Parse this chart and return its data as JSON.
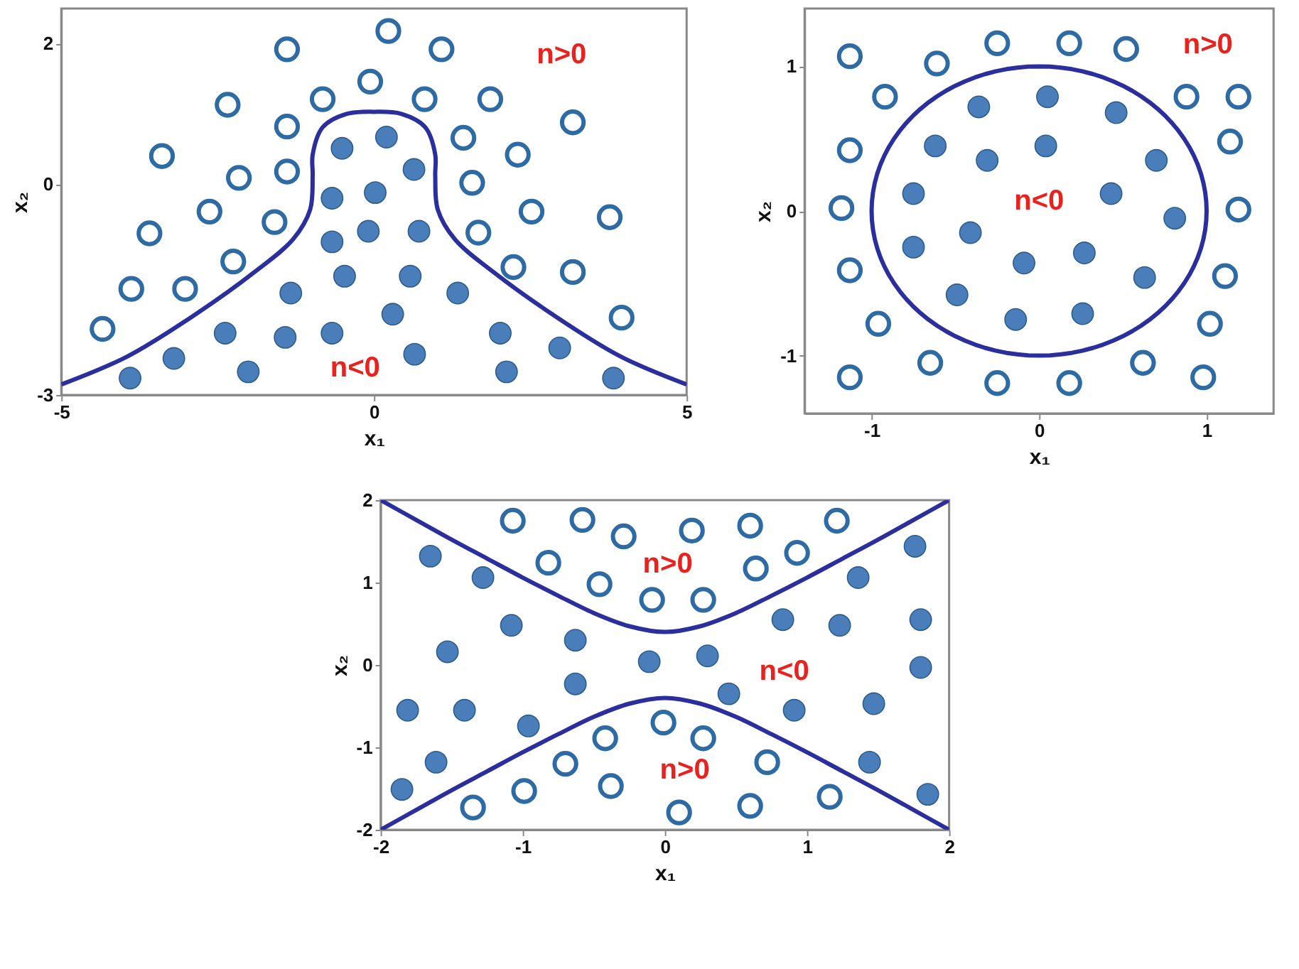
{
  "chart_data": [
    {
      "type": "scatter",
      "xlabel": "x₁",
      "ylabel": "x₂",
      "xlim": [
        -5,
        5
      ],
      "ylim": [
        -3,
        2.5
      ],
      "xticks": [
        -5,
        0,
        5
      ],
      "yticks": [
        -3,
        0,
        2
      ],
      "grid": false,
      "annotations": [
        "n>0",
        "n<0"
      ],
      "series": [
        {
          "marker": "circle",
          "color": "#2e6aa3",
          "x": [
            0.23,
            -1.39,
            1.08,
            -0.06,
            -2.34,
            -0.82,
            0.81,
            1.86,
            3.18,
            -1.39,
            1.43,
            -3.39,
            2.3,
            -2.16,
            -1.39,
            1.57,
            -2.63,
            -1.59,
            2.52,
            3.77,
            -3.59,
            1.67,
            -2.25,
            2.23,
            -3.88,
            -3.02,
            3.18,
            -4.34,
            3.96
          ],
          "values": [
            2.18,
            1.92,
            1.92,
            1.46,
            1.13,
            1.21,
            1.21,
            1.21,
            0.88,
            0.82,
            0.66,
            0.4,
            0.42,
            0.09,
            0.18,
            0.02,
            -0.39,
            -0.54,
            -0.39,
            -0.47,
            -0.7,
            -0.69,
            -1.1,
            -1.18,
            -1.49,
            -1.49,
            -1.25,
            -2.06,
            -1.9
          ]
        },
        {
          "marker": "circle",
          "color": "#4a7ebb",
          "x": [
            0.2,
            -0.51,
            0.64,
            -0.67,
            0.02,
            -0.09,
            -0.67,
            0.72,
            -0.47,
            0.58,
            -1.33,
            1.34,
            0.3,
            -2.38,
            -1.42,
            -0.67,
            2.02,
            -3.2,
            0.65,
            2.97,
            -3.9,
            -2.01,
            2.12,
            3.83
          ],
          "values": [
            0.67,
            0.51,
            0.21,
            -0.2,
            -0.12,
            -0.67,
            -0.82,
            -0.67,
            -1.31,
            -1.31,
            -1.55,
            -1.55,
            -1.85,
            -2.12,
            -2.18,
            -2.12,
            -2.12,
            -2.48,
            -2.42,
            -2.33,
            -2.76,
            -2.67,
            -2.67,
            -2.76
          ]
        },
        {
          "type": "line",
          "marker": "none",
          "color": "#2b2f9e",
          "x": [
            -5,
            -3.94,
            -2.85,
            -1.91,
            -1.29,
            -1.02,
            -0.98,
            -0.98,
            -0.82,
            -0.44,
            0,
            0.44,
            0.82,
            0.98,
            0.98,
            1.02,
            1.29,
            1.91,
            2.85,
            3.94,
            5
          ],
          "values": [
            -2.85,
            -2.45,
            -1.85,
            -1.25,
            -0.78,
            -0.36,
            0.12,
            0.42,
            0.81,
            1.0,
            1.03,
            1.0,
            0.81,
            0.42,
            0.12,
            -0.36,
            -0.78,
            -1.25,
            -1.85,
            -2.45,
            -2.85
          ]
        }
      ]
    },
    {
      "type": "scatter",
      "xlabel": "x₁",
      "ylabel": "x₂",
      "xlim": [
        -1.4,
        1.4
      ],
      "ylim": [
        -1.4,
        1.4
      ],
      "xticks": [
        -1,
        0,
        1
      ],
      "yticks": [
        -1,
        0,
        1
      ],
      "grid": false,
      "annotations": [
        "n>0",
        "n<0"
      ],
      "series": [
        {
          "marker": "circle",
          "color": "#2e6aa3",
          "x": [
            -1.13,
            -0.61,
            -0.25,
            0.18,
            0.52,
            -0.92,
            0.88,
            1.19,
            -1.13,
            1.14,
            -1.18,
            1.19,
            -1.13,
            1.11,
            -0.96,
            1.02,
            -1.13,
            -0.65,
            -0.25,
            0.18,
            0.62,
            0.98
          ],
          "values": [
            1.07,
            1.02,
            1.16,
            1.16,
            1.12,
            0.79,
            0.79,
            0.79,
            0.42,
            0.48,
            0.02,
            0.01,
            -0.41,
            -0.45,
            -0.78,
            -0.78,
            -1.15,
            -1.05,
            -1.19,
            -1.19,
            -1.05,
            -1.15
          ]
        },
        {
          "marker": "circle",
          "color": "#4a7ebb",
          "x": [
            0.05,
            -0.36,
            0.46,
            -0.62,
            0.04,
            -0.31,
            0.7,
            -0.75,
            0.43,
            0.81,
            -0.41,
            -0.75,
            0.27,
            -0.09,
            0.63,
            -0.49,
            -0.14,
            0.26
          ],
          "values": [
            0.79,
            0.72,
            0.68,
            0.45,
            0.45,
            0.35,
            0.35,
            0.12,
            0.12,
            -0.05,
            -0.15,
            -0.25,
            -0.29,
            -0.36,
            -0.46,
            -0.58,
            -0.75,
            -0.71
          ]
        }
      ]
    },
    {
      "type": "scatter",
      "xlabel": "x₁",
      "ylabel": "x₂",
      "xlim": [
        -2,
        2
      ],
      "ylim": [
        -2,
        2
      ],
      "xticks": [
        -2,
        -1,
        0,
        1,
        2
      ],
      "yticks": [
        -2,
        -1,
        0,
        1,
        2
      ],
      "grid": false,
      "annotations": [
        "n>0",
        "n<0",
        "n>0"
      ],
      "series": [
        {
          "marker": "circle",
          "color": "#2e6aa3",
          "x": [
            -1.07,
            -0.58,
            -0.29,
            0.19,
            0.6,
            1.21,
            -0.82,
            -0.46,
            -0.09,
            0.27,
            0.64,
            0.93,
            -0.01,
            -0.42,
            0.27,
            -0.7,
            0.72,
            -0.99,
            -0.38,
            -1.35,
            0.1,
            0.6,
            1.16
          ],
          "values": [
            1.75,
            1.76,
            1.56,
            1.63,
            1.69,
            1.75,
            1.24,
            0.98,
            0.79,
            0.79,
            1.17,
            1.36,
            -0.7,
            -0.89,
            -0.89,
            -1.2,
            -1.18,
            -1.53,
            -1.47,
            -1.73,
            -1.79,
            -1.71,
            -1.6
          ]
        },
        {
          "marker": "circle",
          "color": "#4a7ebb",
          "x": [
            -1.65,
            -1.28,
            -1.08,
            -1.53,
            -0.63,
            -0.63,
            -0.11,
            0.3,
            0.45,
            0.83,
            1.23,
            1.36,
            1.76,
            1.8,
            1.8,
            1.47,
            0.91,
            -1.81,
            -1.41,
            -0.96,
            -1.61,
            -1.85,
            1.44,
            1.85
          ],
          "values": [
            1.32,
            1.06,
            0.48,
            0.16,
            0.3,
            -0.23,
            0.04,
            0.11,
            -0.35,
            0.55,
            0.48,
            1.06,
            1.44,
            0.55,
            -0.03,
            -0.47,
            -0.55,
            -0.55,
            -0.55,
            -0.74,
            -1.18,
            -1.51,
            -1.18,
            -1.57
          ]
        },
        {
          "type": "line",
          "marker": "none",
          "color": "#2b2f9e",
          "x": [
            -2,
            -1.75,
            -1.5,
            -1.25,
            -1,
            -0.75,
            -0.5,
            -0.25,
            0,
            0.25,
            0.5,
            0.75,
            1,
            1.25,
            1.5,
            1.75,
            2
          ],
          "values": [
            2.0,
            1.76,
            1.52,
            1.29,
            1.06,
            0.84,
            0.63,
            0.47,
            0.4,
            0.47,
            0.63,
            0.84,
            1.06,
            1.29,
            1.52,
            1.76,
            2.0
          ]
        },
        {
          "type": "line",
          "marker": "none",
          "color": "#2b2f9e",
          "x": [
            -2,
            -1.75,
            -1.5,
            -1.25,
            -1,
            -0.75,
            -0.5,
            -0.25,
            0,
            0.25,
            0.5,
            0.75,
            1,
            1.25,
            1.5,
            1.75,
            2
          ],
          "values": [
            -2.0,
            -1.76,
            -1.52,
            -1.29,
            -1.06,
            -0.84,
            -0.63,
            -0.47,
            -0.4,
            -0.47,
            -0.63,
            -0.84,
            -1.06,
            -1.29,
            -1.52,
            -1.76,
            -2.0
          ]
        }
      ]
    }
  ]
}
